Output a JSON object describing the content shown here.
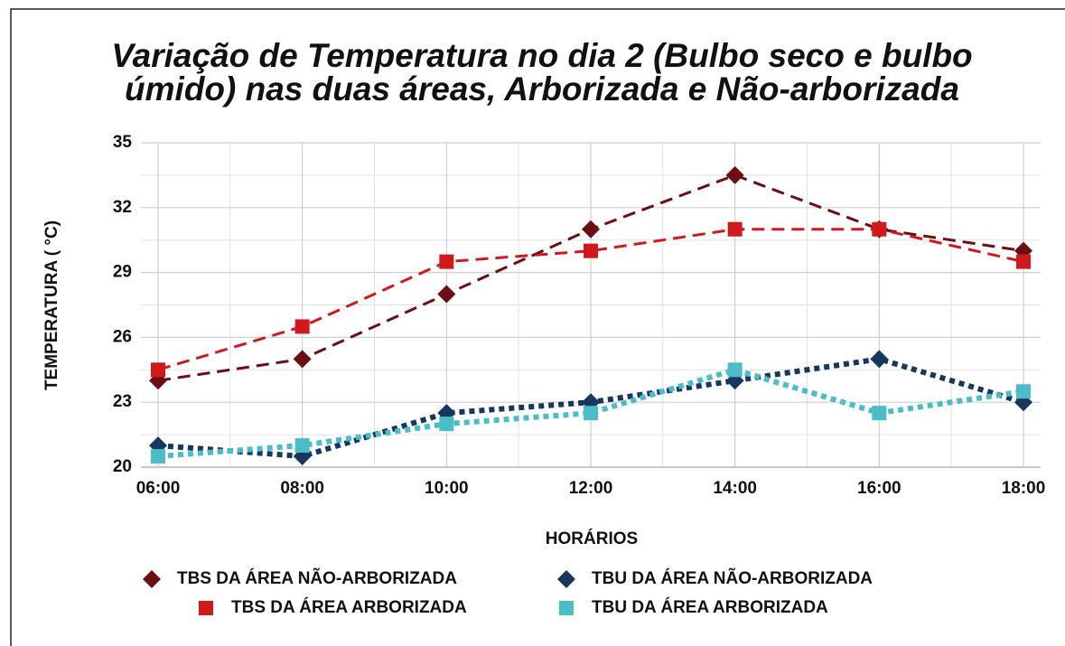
{
  "chart_data": {
    "type": "line",
    "title": [
      "Variação de Temperatura no dia 2 (Bulbo seco e bulbo",
      "úmido) nas duas áreas, Arborizada e Não-arborizada"
    ],
    "x_label": "HORÁRIOS",
    "y_label": "TEMPERATURA ( °C)",
    "categories": [
      "06:00",
      "08:00",
      "10:00",
      "12:00",
      "14:00",
      "16:00",
      "18:00"
    ],
    "ylim": [
      20,
      35
    ],
    "yticks": [
      20,
      23,
      26,
      29,
      32,
      35
    ],
    "grid": true,
    "legend": "bottom",
    "series": [
      {
        "name": "TBS DA ÁREA NÃO-ARBORIZADA",
        "color": "#6b0f12",
        "marker": "diamond",
        "dash": "dashed",
        "values": [
          24,
          25,
          28,
          31,
          33.5,
          31,
          30
        ]
      },
      {
        "name": "TBU DA ÁREA NÃO-ARBORIZADA",
        "color": "#17375e",
        "marker": "diamond",
        "dash": "dotted",
        "values": [
          21,
          20.5,
          22.5,
          23,
          24,
          25,
          23
        ]
      },
      {
        "name": "TBS DA ÁREA ARBORIZADA",
        "color": "#d0191c",
        "marker": "square",
        "dash": "dashed",
        "values": [
          24.5,
          26.5,
          29.5,
          30,
          31,
          31,
          29.5
        ]
      },
      {
        "name": "TBU DA ÁREA ARBORIZADA",
        "color": "#4bbdc8",
        "marker": "square",
        "dash": "dotted",
        "values": [
          20.5,
          21,
          22,
          22.5,
          24.5,
          22.5,
          23.5
        ]
      }
    ]
  }
}
